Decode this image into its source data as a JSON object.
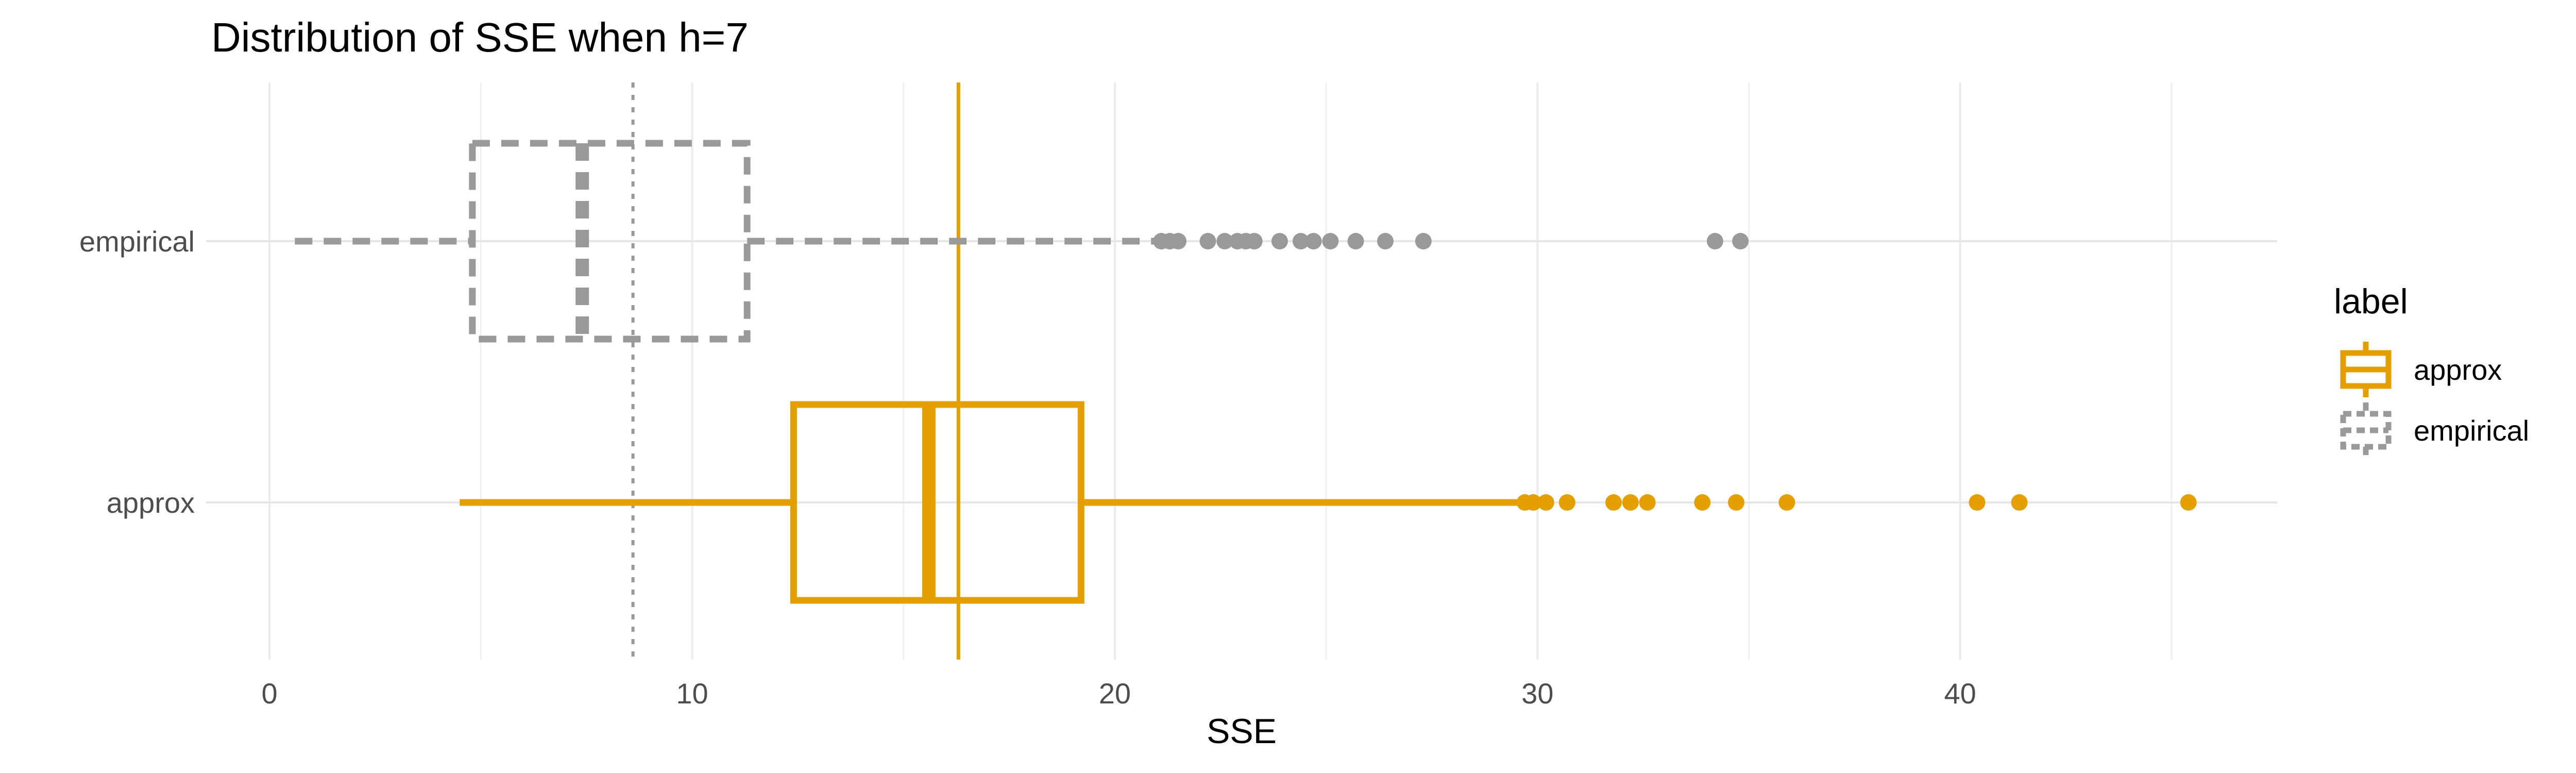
{
  "chart_data": {
    "type": "boxplot",
    "title": "Distribution of SSE when h=7",
    "xlabel": "SSE",
    "ylabel": "",
    "xlim": [
      -1.5,
      47.5
    ],
    "x_ticks": [
      0,
      10,
      20,
      30,
      40
    ],
    "categories": [
      "approx",
      "empirical"
    ],
    "grid": true,
    "legend_position": "right",
    "legend": {
      "title": "label",
      "entries": [
        {
          "name": "approx",
          "color": "#E69F00",
          "linestyle": "solid"
        },
        {
          "name": "empirical",
          "color": "#999999",
          "linestyle": "dashed"
        }
      ]
    },
    "series": [
      {
        "name": "empirical",
        "color": "#999999",
        "linestyle": "dashed",
        "min": 0.6,
        "q1": 4.8,
        "median": 7.4,
        "q3": 11.3,
        "max": 21.0,
        "outliers": [
          21.1,
          21.3,
          21.5,
          22.2,
          22.6,
          22.9,
          23.1,
          23.3,
          23.9,
          24.4,
          24.7,
          25.1,
          25.7,
          26.4,
          27.3,
          34.2,
          34.8
        ]
      },
      {
        "name": "approx",
        "color": "#E69F00",
        "linestyle": "solid",
        "min": 4.5,
        "q1": 12.4,
        "median": 15.6,
        "q3": 19.2,
        "max": 29.6,
        "outliers": [
          29.7,
          29.9,
          30.2,
          30.7,
          31.8,
          32.2,
          32.6,
          33.9,
          34.7,
          35.9,
          40.4,
          41.4,
          45.4
        ]
      }
    ],
    "reference_lines": [
      {
        "x": 8.6,
        "color": "#999999",
        "linestyle": "dotted"
      },
      {
        "x": 16.3,
        "color": "#E69F00",
        "linestyle": "solid"
      }
    ]
  }
}
